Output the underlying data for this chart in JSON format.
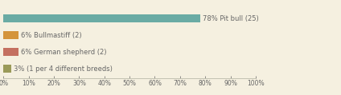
{
  "categories": [
    "78% Pit bull (25)",
    "6% Bullmastiff (2)",
    "6% German shepherd (2)",
    "3% (1 per 4 different breeds)"
  ],
  "values": [
    78,
    6,
    6,
    3
  ],
  "bar_colors": [
    "#6aaba4",
    "#d4943a",
    "#c47060",
    "#9a9a58"
  ],
  "background_color": "#f5f0e0",
  "text_color": "#666666",
  "label_fontsize": 6.0,
  "tick_fontsize": 5.5,
  "xlim": [
    0,
    100
  ],
  "xticks": [
    0,
    10,
    20,
    30,
    40,
    50,
    60,
    70,
    80,
    90,
    100
  ],
  "bar_height": 0.45,
  "figsize": [
    4.24,
    1.19
  ],
  "dpi": 100
}
